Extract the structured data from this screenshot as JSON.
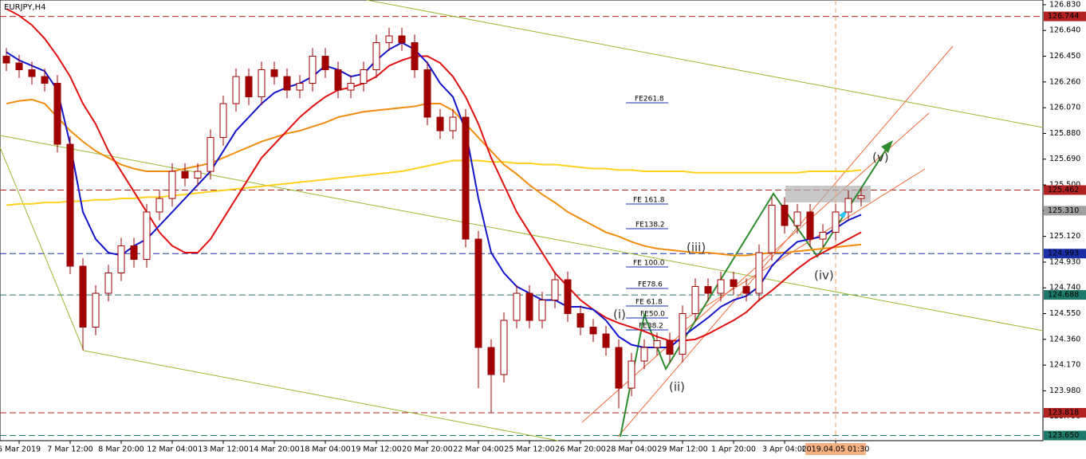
{
  "chart_data": {
    "type": "candlestick",
    "title": "EURJPY,H4",
    "categories": [
      null,
      "6 Mar 2019",
      null,
      null,
      null,
      "7 Mar 12:00",
      null,
      null,
      null,
      "8 Mar 20:00",
      null,
      null,
      null,
      "12 Mar 04:00",
      null,
      null,
      null,
      "13 Mar 12:00",
      null,
      null,
      null,
      "14 Mar 20:00",
      null,
      null,
      null,
      "18 Mar 04:00",
      null,
      null,
      null,
      "19 Mar 12:00",
      null,
      null,
      null,
      "20 Mar 20:00",
      null,
      null,
      null,
      "22 Mar 04:00",
      null,
      null,
      null,
      "25 Mar 12:00",
      null,
      null,
      null,
      "26 Mar 20:00",
      null,
      null,
      null,
      "28 Mar 04:00",
      null,
      null,
      null,
      "29 Mar 12:00",
      null,
      null,
      null,
      "1 Apr 20:00",
      null,
      null,
      null,
      "3 Apr 04:00",
      null,
      null,
      null,
      "2019.04.05 01:30",
      null,
      null
    ],
    "candle_color": "#a00000",
    "open": [
      126.45,
      126.4,
      126.35,
      126.3,
      126.25,
      125.8,
      124.9,
      124.45,
      124.7,
      124.85,
      125.05,
      124.95,
      125.3,
      125.4,
      125.6,
      125.55,
      125.6,
      125.85,
      126.1,
      126.3,
      126.15,
      126.35,
      126.3,
      126.2,
      126.25,
      126.45,
      126.35,
      126.2,
      126.25,
      126.35,
      126.55,
      126.6,
      126.55,
      126.35,
      126.0,
      125.9,
      126.0,
      125.1,
      124.3,
      124.1,
      124.5,
      124.7,
      124.5,
      124.65,
      124.8,
      124.55,
      124.45,
      124.4,
      124.3,
      124.0,
      124.2,
      124.3,
      124.35,
      124.25,
      124.55,
      124.75,
      124.7,
      124.8,
      124.75,
      124.7,
      125.0,
      125.35,
      125.2,
      125.3,
      125.1,
      125.15,
      125.3,
      125.4
    ],
    "high": [
      126.51,
      126.46,
      126.41,
      126.36,
      126.31,
      125.86,
      124.96,
      124.76,
      124.91,
      125.11,
      125.11,
      125.36,
      125.46,
      125.66,
      125.66,
      125.66,
      125.91,
      126.16,
      126.36,
      126.36,
      126.41,
      126.41,
      126.36,
      126.31,
      126.51,
      126.51,
      126.41,
      126.31,
      126.41,
      126.61,
      126.66,
      126.66,
      126.61,
      126.41,
      126.06,
      126.06,
      126.06,
      125.16,
      124.36,
      124.56,
      124.76,
      124.76,
      124.71,
      124.86,
      124.86,
      124.61,
      124.51,
      124.46,
      124.36,
      124.26,
      124.36,
      124.41,
      124.41,
      124.61,
      124.81,
      124.81,
      124.86,
      124.86,
      124.81,
      125.06,
      125.41,
      125.41,
      125.36,
      125.36,
      125.21,
      125.36,
      125.46,
      125.48
    ],
    "low": [
      126.34,
      126.29,
      126.24,
      126.19,
      125.74,
      124.84,
      124.28,
      124.39,
      124.64,
      124.79,
      124.89,
      124.89,
      125.24,
      125.34,
      125.49,
      125.49,
      125.54,
      125.79,
      126.04,
      126.09,
      126.09,
      126.24,
      126.14,
      126.14,
      126.19,
      126.29,
      126.14,
      126.14,
      126.19,
      126.29,
      126.49,
      126.49,
      126.29,
      125.94,
      125.84,
      125.84,
      125.04,
      124.0,
      123.82,
      124.04,
      124.44,
      124.44,
      124.44,
      124.59,
      124.49,
      124.39,
      124.34,
      124.24,
      123.85,
      123.94,
      124.14,
      124.24,
      124.19,
      124.19,
      124.49,
      124.64,
      124.64,
      124.69,
      124.64,
      124.64,
      124.94,
      125.14,
      125.14,
      125.04,
      125.04,
      125.09,
      125.24,
      125.34
    ],
    "close": [
      126.4,
      126.35,
      126.3,
      126.25,
      125.8,
      124.9,
      124.45,
      124.7,
      124.85,
      125.05,
      124.95,
      125.3,
      125.4,
      125.6,
      125.55,
      125.6,
      125.85,
      126.1,
      126.3,
      126.15,
      126.35,
      126.3,
      126.2,
      126.25,
      126.45,
      126.35,
      126.2,
      126.25,
      126.35,
      126.55,
      126.6,
      126.55,
      126.35,
      126.0,
      125.9,
      126.0,
      125.1,
      124.3,
      124.1,
      124.5,
      124.7,
      124.5,
      124.65,
      124.8,
      124.55,
      124.45,
      124.4,
      124.3,
      124.0,
      124.2,
      124.3,
      124.35,
      124.25,
      124.55,
      124.75,
      124.7,
      124.8,
      124.75,
      124.7,
      125.0,
      125.35,
      125.2,
      125.3,
      125.1,
      125.15,
      125.3,
      125.4,
      125.42
    ],
    "series": [
      {
        "color": "#ffd21f",
        "values": [
          125.35,
          125.36,
          125.36,
          125.37,
          125.37,
          125.38,
          125.38,
          125.39,
          125.39,
          125.4,
          125.4,
          125.41,
          125.41,
          125.42,
          125.43,
          125.44,
          125.45,
          125.46,
          125.47,
          125.48,
          125.49,
          125.5,
          125.51,
          125.52,
          125.53,
          125.54,
          125.55,
          125.56,
          125.57,
          125.58,
          125.59,
          125.6,
          125.62,
          125.64,
          125.66,
          125.68,
          125.68,
          125.68,
          125.67,
          125.67,
          125.66,
          125.66,
          125.65,
          125.65,
          125.64,
          125.63,
          125.62,
          125.62,
          125.61,
          125.61,
          125.6,
          125.6,
          125.6,
          125.6,
          125.59,
          125.59,
          125.59,
          125.59,
          125.59,
          125.59,
          125.59,
          125.59,
          125.59,
          125.6,
          125.6,
          125.6,
          125.6,
          125.61
        ]
      },
      {
        "color": "#f28c0f",
        "values": [
          126.1,
          126.12,
          126.13,
          126.1,
          126.0,
          125.9,
          125.82,
          125.75,
          125.7,
          125.65,
          125.62,
          125.6,
          125.6,
          125.6,
          125.62,
          125.64,
          125.66,
          125.7,
          125.74,
          125.78,
          125.82,
          125.85,
          125.88,
          125.9,
          125.93,
          125.96,
          126.0,
          126.02,
          126.04,
          126.05,
          126.06,
          126.07,
          126.08,
          126.1,
          126.1,
          126.05,
          125.95,
          125.85,
          125.75,
          125.65,
          125.58,
          125.5,
          125.43,
          125.37,
          125.3,
          125.25,
          125.2,
          125.15,
          125.12,
          125.08,
          125.05,
          125.03,
          125.02,
          125.01,
          125.0,
          125.0,
          124.99,
          124.98,
          124.98,
          124.99,
          125.0,
          125.0,
          125.01,
          125.02,
          125.03,
          125.04,
          125.05,
          125.06
        ]
      },
      {
        "color": "#e01010",
        "values": [
          126.8,
          126.75,
          126.68,
          126.58,
          126.45,
          126.3,
          126.1,
          125.95,
          125.75,
          125.6,
          125.45,
          125.3,
          125.15,
          125.05,
          125.0,
          125.0,
          125.1,
          125.25,
          125.4,
          125.55,
          125.7,
          125.8,
          125.9,
          126.0,
          126.08,
          126.15,
          126.2,
          126.22,
          126.25,
          126.3,
          126.38,
          126.42,
          126.45,
          126.45,
          126.4,
          126.3,
          126.15,
          125.95,
          125.7,
          125.5,
          125.3,
          125.15,
          125.0,
          124.85,
          124.75,
          124.65,
          124.58,
          124.52,
          124.48,
          124.45,
          124.42,
          124.38,
          124.35,
          124.35,
          124.36,
          124.4,
          124.45,
          124.5,
          124.56,
          124.65,
          124.72,
          124.8,
          124.88,
          124.95,
          125.0,
          125.05,
          125.1,
          125.15
        ]
      },
      {
        "color": "#1414c8",
        "values": [
          126.48,
          126.42,
          126.38,
          126.34,
          126.2,
          125.8,
          125.3,
          125.1,
          125.0,
          124.98,
          125.05,
          125.1,
          125.2,
          125.3,
          125.4,
          125.5,
          125.6,
          125.75,
          125.9,
          126.0,
          126.1,
          126.18,
          126.22,
          126.25,
          126.3,
          126.38,
          126.35,
          126.3,
          126.32,
          126.42,
          126.5,
          126.55,
          126.5,
          126.4,
          126.25,
          126.15,
          125.9,
          125.4,
          125.0,
          124.85,
          124.75,
          124.7,
          124.65,
          124.65,
          124.6,
          124.6,
          124.58,
          124.5,
          124.38,
          124.32,
          124.3,
          124.3,
          124.3,
          124.38,
          124.45,
          124.52,
          124.6,
          124.65,
          124.68,
          124.75,
          124.9,
          125.0,
          125.08,
          125.1,
          125.12,
          125.18,
          125.24,
          125.28
        ]
      }
    ],
    "levels": [
      {
        "value": 126.744,
        "label": "126.744",
        "color": "#b22222"
      },
      {
        "value": 125.462,
        "label": "125.462",
        "color": "#b22222"
      },
      {
        "value": 125.31,
        "label": "125.310",
        "color": "#a0a0a0"
      },
      {
        "value": 124.993,
        "label": "124.993",
        "color": "#1a2ea8"
      },
      {
        "value": 124.688,
        "label": "124.688",
        "color": "#1d7a6a"
      },
      {
        "value": 123.818,
        "label": "123.818",
        "color": "#b22222"
      },
      {
        "value": 123.65,
        "label": "123.650",
        "color": "#1d7a6a"
      }
    ],
    "ylim": [
      123.612,
      126.865
    ],
    "yticks": [
      {
        "value": 126.83,
        "label": "126.830"
      },
      {
        "value": 126.64,
        "label": "126.640"
      },
      {
        "value": 126.45,
        "label": "126.450"
      },
      {
        "value": 126.26,
        "label": "126.260"
      },
      {
        "value": 126.07,
        "label": "126.070"
      },
      {
        "value": 125.88,
        "label": "125.880"
      },
      {
        "value": 125.69,
        "label": "125.690"
      },
      {
        "value": 125.5,
        "label": "125.500"
      },
      {
        "value": 125.31,
        "label": "125.310"
      },
      {
        "value": 125.12,
        "label": "125.120"
      },
      {
        "value": 124.93,
        "label": "124.930"
      },
      {
        "value": 124.74,
        "label": "124.740"
      },
      {
        "value": 124.55,
        "label": "124.550"
      },
      {
        "value": 124.36,
        "label": "124.360"
      },
      {
        "value": 124.17,
        "label": "124.170"
      },
      {
        "value": 123.98,
        "label": "123.980"
      },
      {
        "value": 123.79,
        "label": "123.790"
      }
    ],
    "fib_labels": [
      "FE261.8",
      "FE 161.8",
      "FE138.2",
      "FE 100.0",
      "FE78.6",
      "FE 61.8",
      "FE50.0",
      "FE38.2"
    ],
    "wave_labels": [
      "(i)",
      "(ii)",
      "(iii)",
      "(iv)",
      "(v)"
    ]
  }
}
